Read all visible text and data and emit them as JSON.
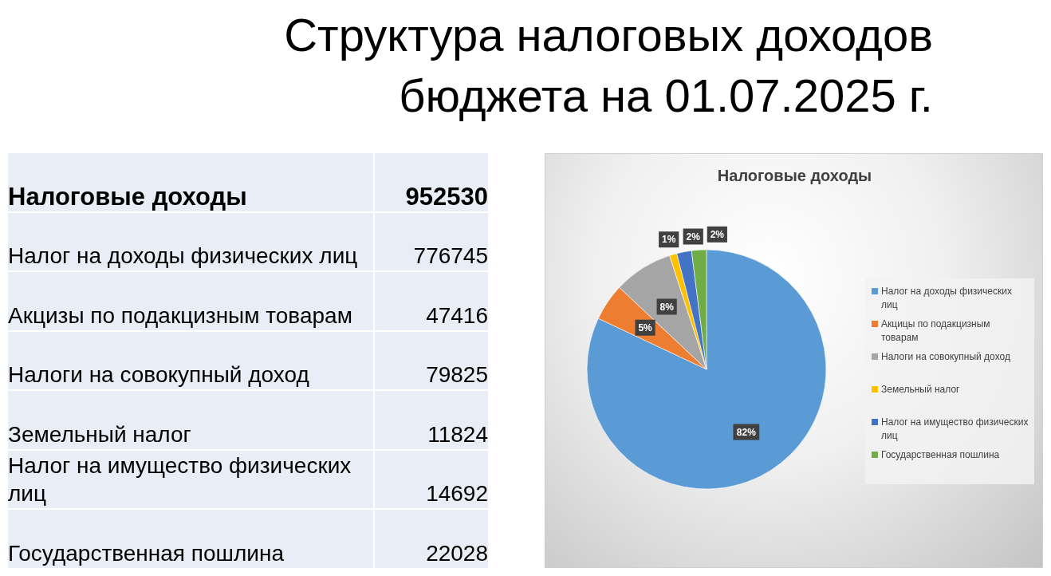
{
  "chart_data": [
    {
      "type": "other",
      "title": "Структура налоговых доходов бюджета на 01.07.2025 г.",
      "categories": [
        "Налоговые доходы",
        "Налог на доходы физических лиц",
        "Акцизы по подакцизным товарам",
        "Налоги на совокупный доход",
        "Земельный налог",
        "Налог на имущество физических лиц",
        "Государственная пошлина"
      ],
      "values": [
        952530,
        776745,
        47416,
        79825,
        11824,
        14692,
        22028
      ],
      "data_labels": true
    },
    {
      "type": "pie",
      "title": "Налоговые доходы",
      "categories": [
        "Налог на доходы физических лиц",
        "Акцицы по подакцизным товарам",
        "Налоги на совокупный доход",
        "Земельный налог",
        "Налог на имущество физических лиц",
        "Государственная пошлина"
      ],
      "values": [
        82,
        5,
        8,
        1,
        2,
        2
      ],
      "colors": [
        "#5b9bd5",
        "#ed7d31",
        "#a5a5a5",
        "#ffc000",
        "#4472c4",
        "#70ad47"
      ],
      "value_labels": [
        "82%",
        "5%",
        "8%",
        "1%",
        "2%",
        "2%"
      ],
      "legend": "right"
    }
  ]
}
